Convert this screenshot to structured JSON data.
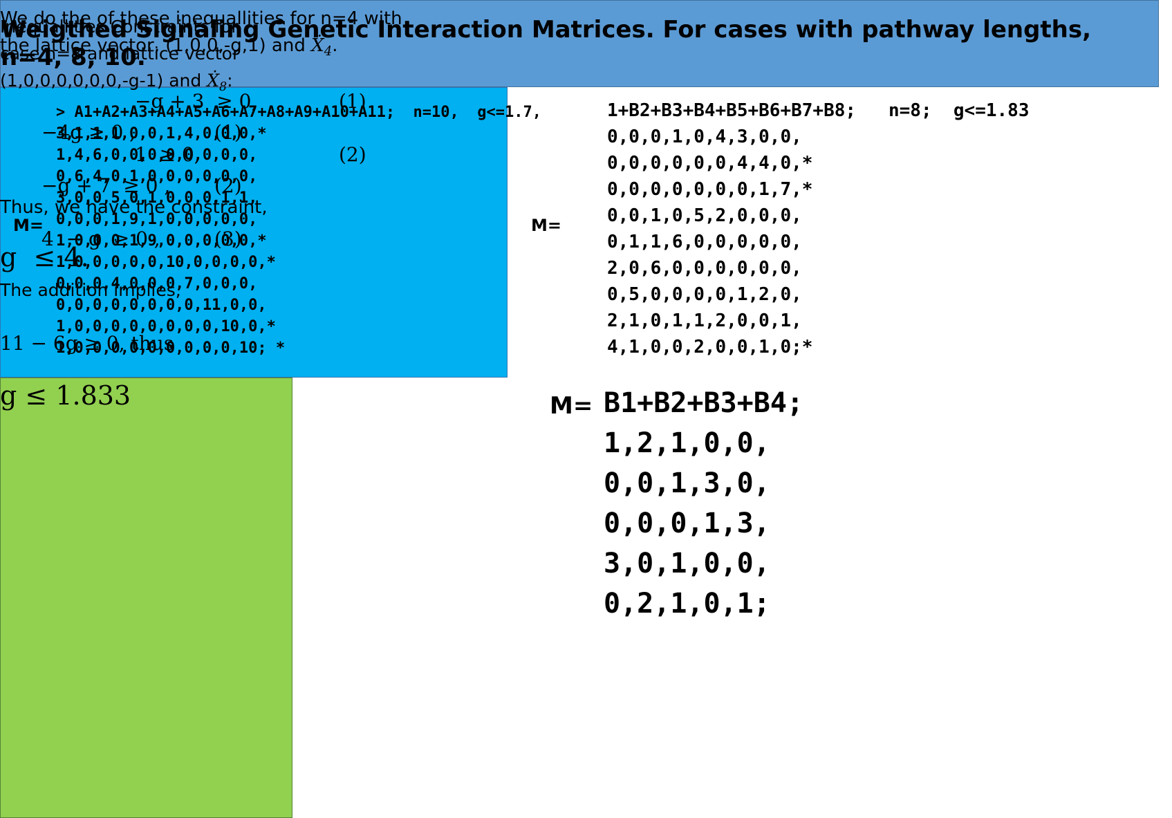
{
  "header": {
    "title": "Weigthed Signaling Genetic Interaction Matrices. For cases with pathway lengths, n=4, 8, 10."
  },
  "matrix_n10": {
    "label": "M=",
    "command": "> A1+A2+A3+A4+A5+A6+A7+A8+A9+A10+A11;  n=10,  g<=1.7,",
    "rows": [
      "3,1,1,1,0,0,1,4,0,0,0,*",
      "1,4,6,0,0,0,0,0,0,0,0,",
      "0,6,4,0,1,0,0,0,0,0,0,",
      "3,0,0,5,0,1,0,0,0,1,1,",
      "0,0,0,1,9,1,0,0,0,0,0,",
      "1,0,0,0,1,9,0,0,0,0,0,*",
      "1,0,0,0,0,0,10,0,0,0,0,*",
      "0,0,0,4,0,0,0,7,0,0,0,",
      "0,0,0,0,0,0,0,0,11,0,0,",
      "1,0,0,0,0,0,0,0,0,10,0,*",
      "1,0,0,0,0,0,0,0,0,0,10; *"
    ]
  },
  "matrix_n8": {
    "label": "M=",
    "command": "1+B2+B3+B4+B5+B6+B7+B8;   n=8;  g<=1.83",
    "rows": [
      "0,0,0,1,0,4,3,0,0,",
      "0,0,0,0,0,0,4,4,0,*",
      "0,0,0,0,0,0,0,1,7,*",
      "0,0,1,0,5,2,0,0,0,",
      "0,1,1,6,0,0,0,0,0,",
      "2,0,6,0,0,0,0,0,0,",
      "0,5,0,0,0,0,1,2,0,",
      "2,1,0,1,1,2,0,0,1,",
      "4,1,0,0,2,0,0,1,0;*"
    ]
  },
  "matrix_n4": {
    "label": "M=",
    "command": "B1+B2+B3+B4;",
    "rows": [
      "1,2,1,0,0,",
      "0,0,1,3,0,",
      "0,0,0,1,3,",
      "3,0,1,0,0,",
      "0,2,1,0,1;"
    ]
  },
  "box_n4": {
    "intro": [
      "We do the of these inequallities for n=4 with",
      "the lattice vector, (1,0,0,-g,1) and "
    ],
    "symbol": "Ẋ",
    "subscript": "4",
    "end": ".",
    "equations": [
      {
        "expr": "−g + 3  ≥ 0,",
        "number": "(1)"
      },
      {
        "expr": "1  ≥ 0,",
        "number": "(2)"
      }
    ],
    "conclusion": "Thus, we have the constraint,",
    "result": "g  ≤ 4."
  },
  "box_n8": {
    "intro": [
      "Inequallities Constraints for",
      "case n=8 and lattice vector",
      "(1,0,0,0,0,0,0,-g-1) and "
    ],
    "symbol": "Ẋ",
    "subscript": "8",
    "end": ":",
    "equations": [
      {
        "expr": "−4g ≥ 0 ,",
        "number": "(1)"
      },
      {
        "expr": "−g + 7  ≥ 0 ,",
        "number": "(2)"
      },
      {
        "expr": "4  − g  ≥ 0 ,",
        "number": "(3)"
      }
    ],
    "conclusion": "The addition implies,",
    "sum": "11 − 6g ≥ 0, thus",
    "result": "g ≤ 1.833"
  }
}
